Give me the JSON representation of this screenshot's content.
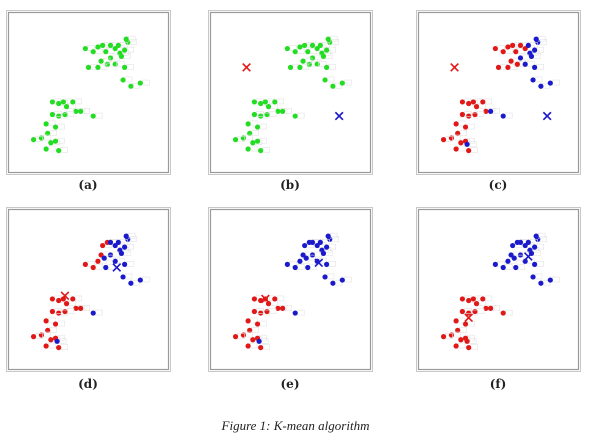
{
  "figure": {
    "caption": "Figure 1: K-mean algorithm",
    "colors": {
      "unassigned": "#22dd22",
      "cluster1": "#e01818",
      "cluster2": "#1a1acc",
      "frame": "#9a9a9a"
    }
  },
  "chart_data": [
    {
      "type": "scatter",
      "label": "(a)",
      "xlim": [
        0,
        100
      ],
      "ylim": [
        0,
        100
      ],
      "series": [
        {
          "color": "#22dd22",
          "points": [
            [
              48,
              78
            ],
            [
              53,
              76
            ],
            [
              56,
              79
            ],
            [
              59,
              80
            ],
            [
              61,
              76
            ],
            [
              64,
              80
            ],
            [
              67,
              78
            ],
            [
              70,
              75
            ],
            [
              64,
              72
            ],
            [
              71,
              73
            ],
            [
              67,
              68
            ],
            [
              62,
              68
            ],
            [
              58,
              70
            ],
            [
              50,
              66
            ],
            [
              56,
              66
            ],
            [
              73,
              66
            ],
            [
              72,
              58
            ],
            [
              77,
              54
            ],
            [
              83,
              56
            ],
            [
              75,
              82
            ],
            [
              69,
              80
            ],
            [
              74,
              84
            ],
            [
              73,
              77
            ],
            [
              27,
              44
            ],
            [
              31,
              43
            ],
            [
              34,
              44
            ],
            [
              36,
              41
            ],
            [
              40,
              44
            ],
            [
              42,
              38
            ],
            [
              35,
              36
            ],
            [
              31,
              35
            ],
            [
              27,
              36
            ],
            [
              23,
              30
            ],
            [
              29,
              28
            ],
            [
              24,
              24
            ],
            [
              20,
              21
            ],
            [
              15,
              20
            ],
            [
              26,
              18
            ],
            [
              29,
              19
            ],
            [
              23,
              14
            ],
            [
              31,
              13
            ],
            [
              45,
              38
            ],
            [
              53,
              35
            ]
          ]
        }
      ],
      "centroids": []
    },
    {
      "type": "scatter",
      "label": "(b)",
      "xlim": [
        0,
        100
      ],
      "ylim": [
        0,
        100
      ],
      "series": [
        {
          "color": "#22dd22",
          "points": [
            [
              48,
              78
            ],
            [
              53,
              76
            ],
            [
              56,
              79
            ],
            [
              59,
              80
            ],
            [
              61,
              76
            ],
            [
              64,
              80
            ],
            [
              67,
              78
            ],
            [
              70,
              75
            ],
            [
              64,
              72
            ],
            [
              71,
              73
            ],
            [
              67,
              68
            ],
            [
              62,
              68
            ],
            [
              58,
              70
            ],
            [
              50,
              66
            ],
            [
              56,
              66
            ],
            [
              73,
              66
            ],
            [
              72,
              58
            ],
            [
              77,
              54
            ],
            [
              83,
              56
            ],
            [
              75,
              82
            ],
            [
              69,
              80
            ],
            [
              74,
              84
            ],
            [
              73,
              77
            ],
            [
              27,
              44
            ],
            [
              31,
              43
            ],
            [
              34,
              44
            ],
            [
              36,
              41
            ],
            [
              40,
              44
            ],
            [
              42,
              38
            ],
            [
              35,
              36
            ],
            [
              31,
              35
            ],
            [
              27,
              36
            ],
            [
              23,
              30
            ],
            [
              29,
              28
            ],
            [
              24,
              24
            ],
            [
              20,
              21
            ],
            [
              15,
              20
            ],
            [
              26,
              18
            ],
            [
              29,
              19
            ],
            [
              23,
              14
            ],
            [
              31,
              13
            ],
            [
              45,
              38
            ],
            [
              53,
              35
            ]
          ]
        }
      ],
      "centroids": [
        {
          "color": "#e01818",
          "x": 22,
          "y": 66
        },
        {
          "color": "#1a1acc",
          "x": 81,
          "y": 35
        }
      ]
    },
    {
      "type": "scatter",
      "label": "(c)",
      "xlim": [
        0,
        100
      ],
      "ylim": [
        0,
        100
      ],
      "series": [
        {
          "color": "#e01818",
          "points": [
            [
              48,
              78
            ],
            [
              53,
              76
            ],
            [
              56,
              79
            ],
            [
              59,
              80
            ],
            [
              61,
              76
            ],
            [
              64,
              80
            ],
            [
              67,
              78
            ],
            [
              50,
              66
            ],
            [
              56,
              66
            ],
            [
              58,
              70
            ],
            [
              62,
              68
            ],
            [
              27,
              44
            ],
            [
              31,
              43
            ],
            [
              34,
              44
            ],
            [
              36,
              41
            ],
            [
              40,
              44
            ],
            [
              42,
              38
            ],
            [
              35,
              36
            ],
            [
              31,
              35
            ],
            [
              27,
              36
            ],
            [
              23,
              30
            ],
            [
              29,
              28
            ],
            [
              24,
              24
            ],
            [
              20,
              21
            ],
            [
              15,
              20
            ],
            [
              26,
              18
            ],
            [
              29,
              19
            ],
            [
              23,
              14
            ],
            [
              31,
              13
            ]
          ]
        },
        {
          "color": "#1a1acc",
          "points": [
            [
              70,
              75
            ],
            [
              64,
              72
            ],
            [
              71,
              73
            ],
            [
              67,
              68
            ],
            [
              73,
              66
            ],
            [
              72,
              58
            ],
            [
              77,
              54
            ],
            [
              83,
              56
            ],
            [
              75,
              82
            ],
            [
              69,
              80
            ],
            [
              74,
              84
            ],
            [
              73,
              77
            ],
            [
              45,
              38
            ],
            [
              53,
              35
            ],
            [
              30,
              17
            ]
          ]
        }
      ],
      "centroids": [
        {
          "color": "#e01818",
          "x": 22,
          "y": 66
        },
        {
          "color": "#1a1acc",
          "x": 81,
          "y": 35
        }
      ]
    },
    {
      "type": "scatter",
      "label": "(d)",
      "xlim": [
        0,
        100
      ],
      "ylim": [
        0,
        100
      ],
      "series": [
        {
          "color": "#e01818",
          "points": [
            [
              48,
              66
            ],
            [
              53,
              64
            ],
            [
              56,
              68
            ],
            [
              58,
              72
            ],
            [
              59,
              78
            ],
            [
              62,
              80
            ],
            [
              27,
              44
            ],
            [
              31,
              43
            ],
            [
              34,
              44
            ],
            [
              36,
              41
            ],
            [
              40,
              44
            ],
            [
              42,
              38
            ],
            [
              35,
              36
            ],
            [
              31,
              35
            ],
            [
              27,
              36
            ],
            [
              23,
              30
            ],
            [
              29,
              28
            ],
            [
              24,
              24
            ],
            [
              20,
              21
            ],
            [
              15,
              20
            ],
            [
              26,
              18
            ],
            [
              29,
              19
            ],
            [
              23,
              14
            ],
            [
              31,
              13
            ],
            [
              45,
              38
            ]
          ]
        },
        {
          "color": "#1a1acc",
          "points": [
            [
              64,
              80
            ],
            [
              67,
              78
            ],
            [
              70,
              75
            ],
            [
              64,
              72
            ],
            [
              71,
              73
            ],
            [
              67,
              68
            ],
            [
              73,
              66
            ],
            [
              72,
              58
            ],
            [
              77,
              54
            ],
            [
              83,
              56
            ],
            [
              75,
              82
            ],
            [
              69,
              80
            ],
            [
              74,
              84
            ],
            [
              73,
              77
            ],
            [
              53,
              35
            ],
            [
              30,
              17
            ],
            [
              60,
              70
            ],
            [
              61,
              64
            ]
          ]
        }
      ],
      "centroids": [
        {
          "color": "#e01818",
          "x": 35,
          "y": 46
        },
        {
          "color": "#1a1acc",
          "x": 68,
          "y": 64
        }
      ]
    },
    {
      "type": "scatter",
      "label": "(e)",
      "xlim": [
        0,
        100
      ],
      "ylim": [
        0,
        100
      ],
      "series": [
        {
          "color": "#e01818",
          "points": [
            [
              27,
              44
            ],
            [
              31,
              43
            ],
            [
              34,
              44
            ],
            [
              36,
              41
            ],
            [
              40,
              44
            ],
            [
              42,
              38
            ],
            [
              35,
              36
            ],
            [
              31,
              35
            ],
            [
              27,
              36
            ],
            [
              23,
              30
            ],
            [
              29,
              28
            ],
            [
              24,
              24
            ],
            [
              20,
              21
            ],
            [
              15,
              20
            ],
            [
              26,
              18
            ],
            [
              29,
              19
            ],
            [
              23,
              14
            ],
            [
              31,
              13
            ],
            [
              45,
              38
            ]
          ]
        },
        {
          "color": "#1a1acc",
          "points": [
            [
              48,
              66
            ],
            [
              53,
              64
            ],
            [
              56,
              68
            ],
            [
              58,
              72
            ],
            [
              59,
              78
            ],
            [
              62,
              80
            ],
            [
              64,
              80
            ],
            [
              67,
              78
            ],
            [
              70,
              75
            ],
            [
              64,
              72
            ],
            [
              71,
              73
            ],
            [
              67,
              68
            ],
            [
              73,
              66
            ],
            [
              72,
              58
            ],
            [
              77,
              54
            ],
            [
              83,
              56
            ],
            [
              75,
              82
            ],
            [
              69,
              80
            ],
            [
              74,
              84
            ],
            [
              73,
              77
            ],
            [
              53,
              35
            ],
            [
              30,
              17
            ],
            [
              60,
              70
            ],
            [
              61,
              64
            ]
          ]
        }
      ],
      "centroids": [
        {
          "color": "#e01818",
          "x": 34,
          "y": 44
        },
        {
          "color": "#1a1acc",
          "x": 68,
          "y": 67
        }
      ]
    },
    {
      "type": "scatter",
      "label": "(f)",
      "xlim": [
        0,
        100
      ],
      "ylim": [
        0,
        100
      ],
      "series": [
        {
          "color": "#e01818",
          "points": [
            [
              27,
              44
            ],
            [
              31,
              43
            ],
            [
              34,
              44
            ],
            [
              36,
              41
            ],
            [
              40,
              44
            ],
            [
              42,
              38
            ],
            [
              35,
              36
            ],
            [
              31,
              35
            ],
            [
              27,
              36
            ],
            [
              23,
              30
            ],
            [
              29,
              28
            ],
            [
              24,
              24
            ],
            [
              20,
              21
            ],
            [
              15,
              20
            ],
            [
              26,
              18
            ],
            [
              29,
              19
            ],
            [
              23,
              14
            ],
            [
              31,
              13
            ],
            [
              45,
              38
            ],
            [
              53,
              35
            ],
            [
              30,
              17
            ]
          ]
        },
        {
          "color": "#1a1acc",
          "points": [
            [
              48,
              66
            ],
            [
              53,
              64
            ],
            [
              56,
              68
            ],
            [
              58,
              72
            ],
            [
              59,
              78
            ],
            [
              62,
              80
            ],
            [
              64,
              80
            ],
            [
              67,
              78
            ],
            [
              70,
              75
            ],
            [
              64,
              72
            ],
            [
              71,
              73
            ],
            [
              67,
              68
            ],
            [
              73,
              66
            ],
            [
              72,
              58
            ],
            [
              77,
              54
            ],
            [
              83,
              56
            ],
            [
              75,
              82
            ],
            [
              69,
              80
            ],
            [
              74,
              84
            ],
            [
              73,
              77
            ],
            [
              60,
              70
            ],
            [
              61,
              64
            ]
          ]
        }
      ],
      "centroids": [
        {
          "color": "#e01818",
          "x": 31,
          "y": 32
        },
        {
          "color": "#1a1acc",
          "x": 69,
          "y": 71
        }
      ]
    }
  ]
}
